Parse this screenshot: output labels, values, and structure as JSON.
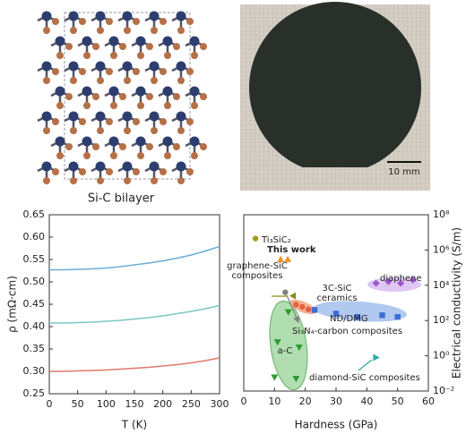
{
  "panels": {
    "structure_caption": "Si-C bilayer",
    "scale_bar": "10 mm"
  },
  "chart_data": [
    {
      "type": "line",
      "x_label": "T (K)",
      "y_label": "ρ (mΩ·cm)",
      "x": [
        0,
        25,
        50,
        75,
        100,
        125,
        150,
        175,
        200,
        225,
        250,
        275,
        300
      ],
      "xlim": [
        0,
        300
      ],
      "xticks": [
        0,
        50,
        100,
        150,
        200,
        250,
        300
      ],
      "ylim": [
        0.25,
        0.65
      ],
      "yticks": [
        0.25,
        {
          "value": 0.3,
          "label": "0.30"
        },
        0.35,
        {
          "value": 0.4,
          "label": "0.40"
        },
        0.45,
        {
          "value": 0.5,
          "label": "0.50"
        },
        0.55,
        {
          "value": 0.6,
          "label": "0.60"
        },
        0.65
      ],
      "series": [
        {
          "color": "#6aaed6",
          "values": [
            0.527,
            0.527,
            0.528,
            0.529,
            0.531,
            0.534,
            0.538,
            0.542,
            0.547,
            0.553,
            0.56,
            0.569,
            0.579
          ]
        },
        {
          "color": "#7cc8c0",
          "values": [
            0.408,
            0.408,
            0.409,
            0.41,
            0.412,
            0.414,
            0.417,
            0.42,
            0.424,
            0.429,
            0.434,
            0.44,
            0.447
          ]
        },
        {
          "color": "#e0796b",
          "values": [
            0.3,
            0.3,
            0.301,
            0.302,
            0.303,
            0.305,
            0.307,
            0.309,
            0.312,
            0.315,
            0.319,
            0.324,
            0.33
          ]
        }
      ]
    },
    {
      "type": "scatter",
      "x_label": "Hardness (GPa)",
      "y_label": "Electrical conductivity (S/m)",
      "xlim": [
        0,
        60
      ],
      "xticks": [
        0,
        10,
        20,
        30,
        40,
        50,
        60
      ],
      "ylim": [
        0.01,
        100000000
      ],
      "y_scale": "log",
      "y_axis_side": "right",
      "yticks": [
        {
          "value": 0.01,
          "label": "10⁻²"
        },
        {
          "value": 1,
          "label": "10⁰"
        },
        {
          "value": 100,
          "label": "10²"
        },
        {
          "value": 10000,
          "label": "10⁴"
        },
        {
          "value": 1000000,
          "label": "10⁶"
        },
        {
          "value": 100000000,
          "label": "10⁸"
        }
      ],
      "series": [
        {
          "name": "Ti₃SiC₂",
          "color": "#a09a20",
          "marker": "circle",
          "x": [
            3.8
          ],
          "values": [
            4500000
          ]
        },
        {
          "name": "This work",
          "color": "#f0922c",
          "marker": "triangle-up",
          "x": [
            12,
            14.3
          ],
          "values": [
            300000,
            300000
          ]
        },
        {
          "name": "graphene-SiC composites",
          "color": "#8a8a10",
          "marker": "triangle-left",
          "x": [
            16
          ],
          "values": [
            2500
          ]
        },
        {
          "name": "3C-SiC ceramics",
          "color": "#e8603c",
          "marker": "circle",
          "x": [
            17,
            19,
            21
          ],
          "values": [
            800,
            600,
            430
          ]
        },
        {
          "name": "diaphene",
          "color": "#9b59d0",
          "marker": "diamond",
          "x": [
            43,
            47,
            51,
            55
          ],
          "values": [
            13000,
            16000,
            13000,
            20000
          ]
        },
        {
          "name": "ND/DMG",
          "color": "#3b6fd6",
          "marker": "square",
          "x": [
            23,
            30,
            37,
            45,
            50
          ],
          "values": [
            400,
            250,
            160,
            200,
            160
          ]
        },
        {
          "name": "a-C",
          "color": "#2e9b2e",
          "marker": "triangle-down",
          "x": [
            14.5,
            11,
            18,
            10,
            17
          ],
          "values": [
            300,
            6,
            3,
            0.06,
            0.05
          ]
        },
        {
          "name": "Si₃N₄-carbon composites",
          "color": "#808080",
          "marker": "circle",
          "x": [
            13.5
          ],
          "values": [
            4000
          ]
        },
        {
          "name": "diamond-SiC composites",
          "color": "#2fa8a8",
          "marker": "triangle-right",
          "x": [
            43
          ],
          "values": [
            0.8
          ]
        }
      ]
    }
  ]
}
